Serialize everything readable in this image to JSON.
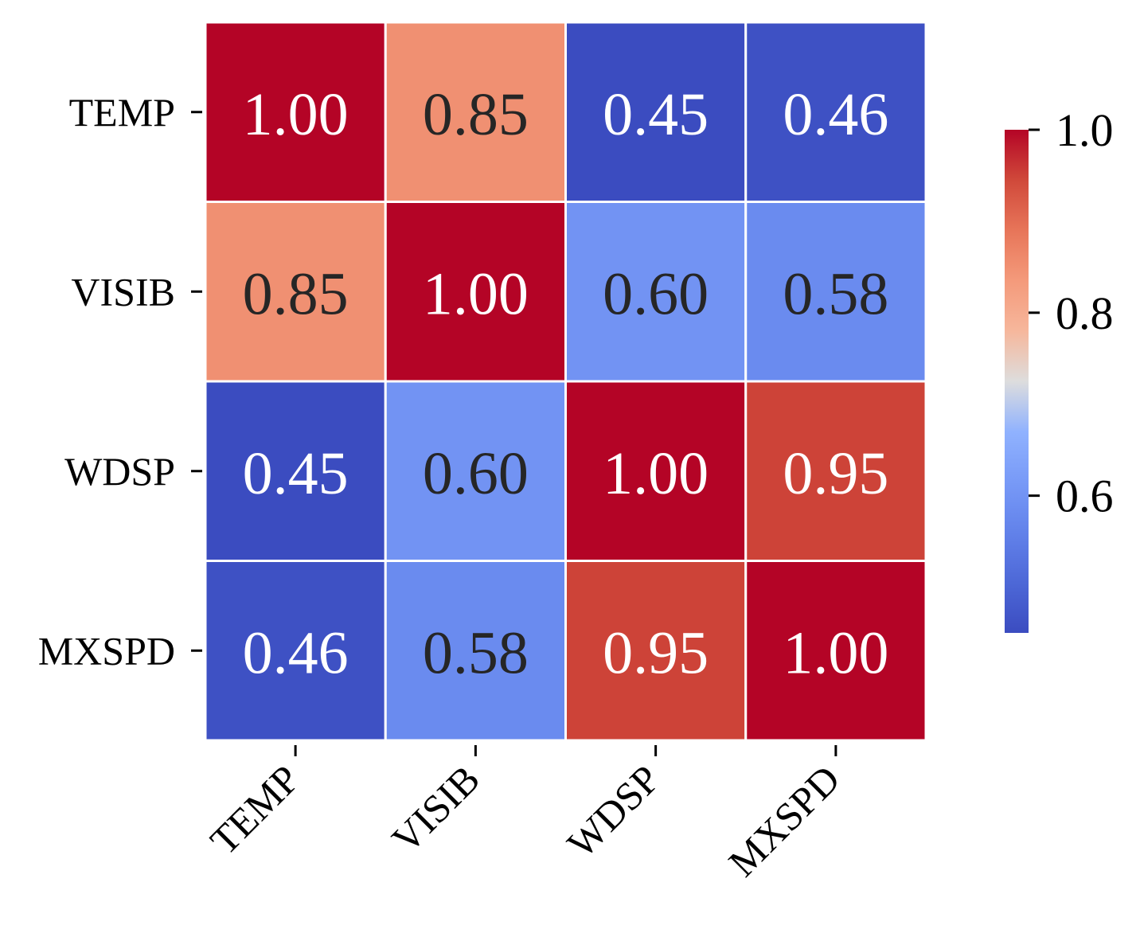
{
  "chart_data": {
    "type": "heatmap",
    "title": "",
    "xlabel": "",
    "ylabel": "",
    "x_categories": [
      "TEMP",
      "VISIB",
      "WDSP",
      "MXSPD"
    ],
    "y_categories": [
      "TEMP",
      "VISIB",
      "WDSP",
      "MXSPD"
    ],
    "values": [
      [
        1.0,
        0.85,
        0.45,
        0.46
      ],
      [
        0.85,
        1.0,
        0.6,
        0.58
      ],
      [
        0.45,
        0.6,
        1.0,
        0.95
      ],
      [
        0.46,
        0.58,
        0.95,
        1.0
      ]
    ],
    "value_labels": [
      [
        "1.00",
        "0.85",
        "0.45",
        "0.46"
      ],
      [
        "0.85",
        "1.00",
        "0.60",
        "0.58"
      ],
      [
        "0.45",
        "0.60",
        "1.00",
        "0.95"
      ],
      [
        "0.46",
        "0.58",
        "0.95",
        "1.00"
      ]
    ],
    "colormap": "coolwarm",
    "colorbar": {
      "range": [
        0.45,
        1.0
      ],
      "ticks": [
        0.6,
        0.8,
        1.0
      ],
      "tick_labels": [
        "0.6",
        "0.8",
        "1.0"
      ],
      "placement": "right"
    },
    "x_tick_rotation": "45 degrees",
    "grid": false,
    "cell_separator_color": "#ffffff",
    "text_color_dark": "#262626",
    "text_color_light": "#ffffff"
  }
}
